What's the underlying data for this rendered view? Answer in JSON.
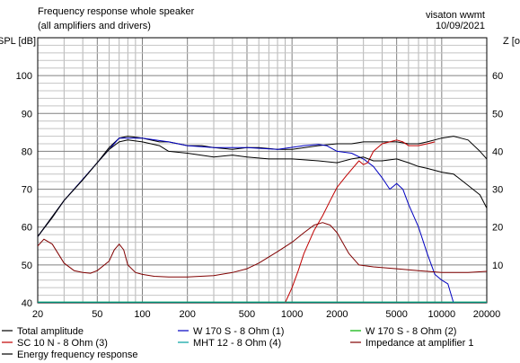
{
  "header": {
    "title": "Frequency response whole speaker",
    "subtitle": "(all amplifiers and drivers)",
    "brand": "visaton wwmt",
    "date": "10/09/2021"
  },
  "chart_data": {
    "type": "line",
    "title": "Frequency response whole speaker",
    "subtitle": "(all amplifiers and drivers)",
    "ylabel": "SPL [dB]",
    "y2label": "Z [ohm]",
    "xscale": "log",
    "xlim": [
      20,
      20000
    ],
    "ylim": [
      40,
      110
    ],
    "y2lim": [
      0,
      70
    ],
    "grid": true,
    "x_ticks": [
      {
        "v": 20,
        "label": "20"
      },
      {
        "v": 50,
        "label": "50"
      },
      {
        "v": 100,
        "label": "100"
      },
      {
        "v": 200,
        "label": "200"
      },
      {
        "v": 500,
        "label": "500"
      },
      {
        "v": 1000,
        "label": "1000"
      },
      {
        "v": 2000,
        "label": "2000"
      },
      {
        "v": 5000,
        "label": "5000"
      },
      {
        "v": 10000,
        "label": "10000"
      },
      {
        "v": 20000,
        "label": "20000"
      }
    ],
    "y_ticks": [
      {
        "v": 50,
        "label": "50"
      },
      {
        "v": 60,
        "label": "60"
      },
      {
        "v": 70,
        "label": "70"
      },
      {
        "v": 80,
        "label": "80"
      },
      {
        "v": 90,
        "label": "90"
      },
      {
        "v": 100,
        "label": "100"
      }
    ],
    "y2_ticks": [
      {
        "v": 10,
        "label": "10"
      },
      {
        "v": 20,
        "label": "20"
      },
      {
        "v": 30,
        "label": "30"
      },
      {
        "v": 40,
        "label": "40"
      },
      {
        "v": 50,
        "label": "50"
      },
      {
        "v": 60,
        "label": "60"
      }
    ],
    "y_tick_bottom": "40",
    "legend_placement": "bottom",
    "series": [
      {
        "name": "Total amplitude",
        "color": "#000000",
        "axis": "left",
        "points": [
          [
            20,
            57.5
          ],
          [
            25,
            62.5
          ],
          [
            30,
            67
          ],
          [
            40,
            72.5
          ],
          [
            50,
            77
          ],
          [
            60,
            81
          ],
          [
            70,
            83.5
          ],
          [
            80,
            84
          ],
          [
            100,
            83.5
          ],
          [
            130,
            82.5
          ],
          [
            150,
            82.5
          ],
          [
            200,
            81.5
          ],
          [
            250,
            81.5
          ],
          [
            300,
            81
          ],
          [
            400,
            80.5
          ],
          [
            500,
            81
          ],
          [
            600,
            81
          ],
          [
            800,
            80.5
          ],
          [
            1000,
            80.5
          ],
          [
            1500,
            81.5
          ],
          [
            2000,
            82
          ],
          [
            2500,
            82
          ],
          [
            3000,
            82.5
          ],
          [
            4000,
            82.5
          ],
          [
            5000,
            82.5
          ],
          [
            6000,
            82
          ],
          [
            7000,
            82
          ],
          [
            8000,
            82.5
          ],
          [
            10000,
            83.5
          ],
          [
            12000,
            84
          ],
          [
            15000,
            83
          ],
          [
            18000,
            80
          ],
          [
            20000,
            78
          ]
        ]
      },
      {
        "name": "W 170 S - 8 Ohm (1)",
        "color": "#0000c0",
        "axis": "left",
        "points": [
          [
            20,
            57.5
          ],
          [
            30,
            67
          ],
          [
            50,
            77
          ],
          [
            70,
            83.5
          ],
          [
            100,
            83.5
          ],
          [
            150,
            82.5
          ],
          [
            200,
            81.5
          ],
          [
            300,
            81
          ],
          [
            500,
            81
          ],
          [
            800,
            80.5
          ],
          [
            1200,
            81.5
          ],
          [
            1500,
            81.8
          ],
          [
            1700,
            81.5
          ],
          [
            2000,
            80
          ],
          [
            2500,
            79.5
          ],
          [
            3000,
            78
          ],
          [
            3500,
            76
          ],
          [
            4000,
            73
          ],
          [
            4500,
            70
          ],
          [
            5000,
            71.5
          ],
          [
            5500,
            70
          ],
          [
            6000,
            66
          ],
          [
            7000,
            60
          ],
          [
            8000,
            53
          ],
          [
            9000,
            47.5
          ],
          [
            10000,
            46
          ],
          [
            11000,
            45
          ],
          [
            12000,
            40
          ]
        ]
      },
      {
        "name": "W 170 S - 8 Ohm (2)",
        "color": "#00b000",
        "axis": "left",
        "points": [
          [
            20,
            40.2
          ],
          [
            20000,
            40.2
          ]
        ]
      },
      {
        "name": "SC 10 N - 8 Ohm (3)",
        "color": "#c00000",
        "axis": "left",
        "points": [
          [
            900,
            40
          ],
          [
            1000,
            44
          ],
          [
            1100,
            48.5
          ],
          [
            1200,
            53
          ],
          [
            1400,
            59
          ],
          [
            1600,
            63
          ],
          [
            1800,
            67
          ],
          [
            2000,
            70.5
          ],
          [
            2300,
            73.5
          ],
          [
            2600,
            76
          ],
          [
            2800,
            77.5
          ],
          [
            3000,
            76.5
          ],
          [
            3200,
            77
          ],
          [
            3500,
            80
          ],
          [
            4000,
            82
          ],
          [
            4500,
            82.5
          ],
          [
            5000,
            83
          ],
          [
            5500,
            82.5
          ],
          [
            6000,
            81.5
          ],
          [
            7000,
            81.5
          ],
          [
            8000,
            82
          ],
          [
            9000,
            82.5
          ]
        ]
      },
      {
        "name": "MHT 12 - 8 Ohm (4)",
        "color": "#00a0a0",
        "axis": "left",
        "points": [
          [
            20,
            40.2
          ],
          [
            20000,
            40.2
          ]
        ]
      },
      {
        "name": "Impedance at amplifier 1",
        "color": "#800000",
        "axis": "right",
        "points": [
          [
            20,
            15
          ],
          [
            22,
            16.8
          ],
          [
            25,
            15.5
          ],
          [
            30,
            10.5
          ],
          [
            35,
            8.5
          ],
          [
            40,
            8
          ],
          [
            45,
            7.8
          ],
          [
            50,
            8.5
          ],
          [
            60,
            11
          ],
          [
            65,
            14
          ],
          [
            70,
            15.5
          ],
          [
            75,
            14
          ],
          [
            80,
            10
          ],
          [
            90,
            8
          ],
          [
            100,
            7.5
          ],
          [
            120,
            7
          ],
          [
            150,
            6.8
          ],
          [
            200,
            6.8
          ],
          [
            300,
            7.2
          ],
          [
            400,
            8
          ],
          [
            500,
            9
          ],
          [
            600,
            10.5
          ],
          [
            800,
            13.5
          ],
          [
            1000,
            16
          ],
          [
            1200,
            18.5
          ],
          [
            1400,
            20.5
          ],
          [
            1600,
            21.2
          ],
          [
            1800,
            20.5
          ],
          [
            2000,
            18.5
          ],
          [
            2400,
            13
          ],
          [
            2800,
            10
          ],
          [
            3500,
            9.5
          ],
          [
            5000,
            9
          ],
          [
            7000,
            8.5
          ],
          [
            10000,
            8
          ],
          [
            15000,
            8
          ],
          [
            20000,
            8.3
          ]
        ]
      },
      {
        "name": "Energy frequency response",
        "color": "#000000",
        "axis": "left",
        "points": [
          [
            20,
            57.5
          ],
          [
            30,
            67
          ],
          [
            40,
            72.5
          ],
          [
            50,
            77
          ],
          [
            60,
            80.5
          ],
          [
            70,
            82.5
          ],
          [
            80,
            83
          ],
          [
            100,
            82.5
          ],
          [
            130,
            81.5
          ],
          [
            150,
            80
          ],
          [
            200,
            79.5
          ],
          [
            300,
            78.5
          ],
          [
            400,
            79
          ],
          [
            500,
            78.5
          ],
          [
            700,
            78
          ],
          [
            1000,
            78
          ],
          [
            1500,
            77.5
          ],
          [
            2000,
            77
          ],
          [
            2500,
            78
          ],
          [
            3000,
            78.5
          ],
          [
            3500,
            77.5
          ],
          [
            4000,
            77.5
          ],
          [
            5000,
            78
          ],
          [
            6000,
            77
          ],
          [
            7000,
            76
          ],
          [
            8000,
            75.5
          ],
          [
            10000,
            74.5
          ],
          [
            12000,
            74
          ],
          [
            15000,
            71
          ],
          [
            18000,
            68.5
          ],
          [
            20000,
            65
          ]
        ]
      }
    ]
  }
}
